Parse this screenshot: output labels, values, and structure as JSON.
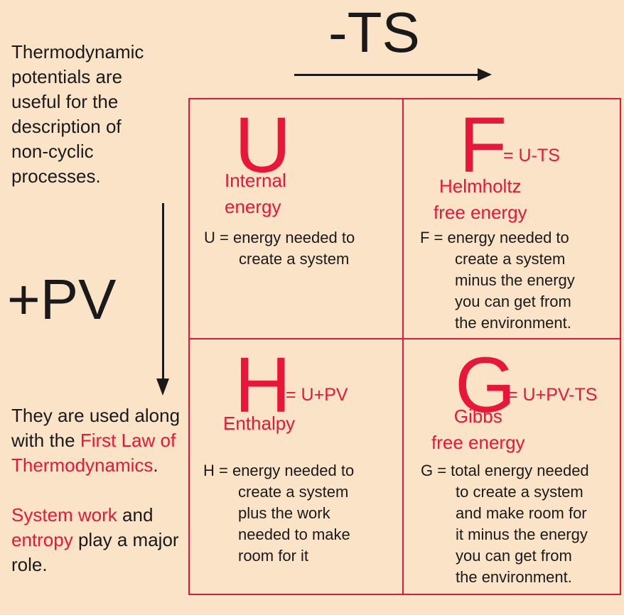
{
  "intro": {
    "lines": [
      "Thermodynamic",
      "potentials are",
      "useful for the",
      "description of",
      "non-cyclic",
      "processes."
    ]
  },
  "axes": {
    "horizontal_label": "-TS",
    "vertical_label": "+PV"
  },
  "outro": {
    "p1_before": "They are used along with the ",
    "p1_highlight": "First Law of Thermodynamics",
    "p1_after": ".",
    "p2_highlight1": "System work",
    "p2_mid": " and ",
    "p2_highlight2": "entropy",
    "p2_after": " play a major role."
  },
  "cells": {
    "u": {
      "symbol": "U",
      "equation": "",
      "name_lines": [
        "Internal",
        "energy"
      ],
      "desc_lines": [
        "U = energy needed to",
        "create a system"
      ]
    },
    "f": {
      "symbol": "F",
      "equation": "= U-TS",
      "name_lines": [
        "Helmholtz",
        "free energy"
      ],
      "desc_lines": [
        "F = energy needed to",
        "create a system",
        "minus the energy",
        "you can get from",
        "the environment."
      ]
    },
    "h": {
      "symbol": "H",
      "equation": "= U+PV",
      "name_lines": [
        "Enthalpy"
      ],
      "desc_lines": [
        "H = energy needed to",
        "create a system",
        "plus the work",
        "needed to make",
        "room for it"
      ]
    },
    "g": {
      "symbol": "G",
      "equation": "= U+PV-TS",
      "name_lines": [
        "Gibbs",
        "free energy"
      ],
      "desc_lines": [
        "G = total energy needed",
        "to create a system",
        "and make room for",
        "it minus the energy",
        "you can get from",
        "the environment."
      ]
    }
  },
  "colors": {
    "background": "#fbe3c8",
    "accent": "#e8173a",
    "text": "#1a1a1a"
  }
}
